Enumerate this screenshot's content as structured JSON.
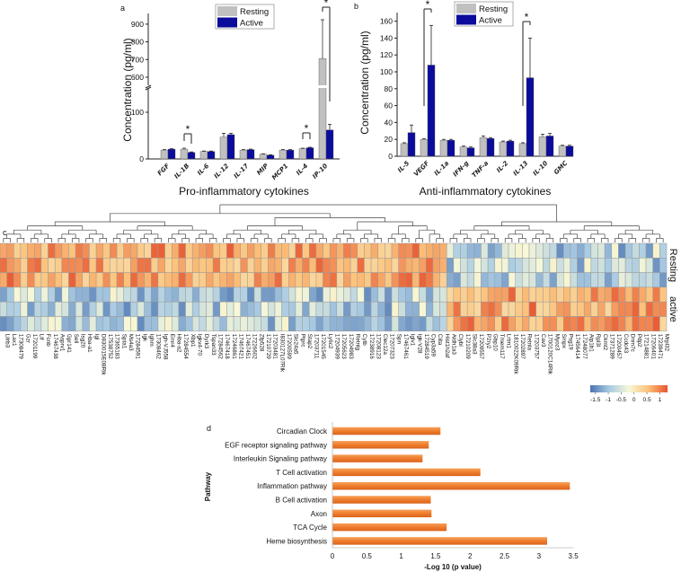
{
  "chart_data": [
    {
      "panel": "a",
      "type": "bar",
      "ylabel": "Concentration (pg/ml)",
      "xlabel": "Pro-inflammatory cytokines",
      "categories": [
        "FGF",
        "IL-1B",
        "IL-6",
        "IL-12",
        "IL-17",
        "MIP",
        "MCP1",
        "IL-4",
        "IP-10"
      ],
      "series": [
        {
          "name": "Resting",
          "color": "#c0c0c0",
          "values": [
            19,
            21,
            16,
            47,
            19,
            10,
            19,
            22,
            705
          ],
          "errors": [
            1,
            2,
            1,
            8,
            1,
            1,
            1,
            1,
            220
          ]
        },
        {
          "name": "Active",
          "color": "#0b0b9c",
          "values": [
            21,
            14,
            16,
            52,
            20,
            8,
            19,
            24,
            62
          ],
          "errors": [
            1,
            1,
            1,
            3,
            1,
            1,
            1,
            1,
            12
          ]
        }
      ],
      "yticks_lower": [
        0,
        100
      ],
      "yticks_upper": [
        600,
        700,
        800,
        900
      ],
      "axis_break": [
        155,
        560
      ],
      "significance": [
        {
          "category": "IL-1B",
          "mark": "*"
        },
        {
          "category": "IL-4",
          "mark": "*"
        },
        {
          "category": "IP-10",
          "mark": "*"
        }
      ],
      "legend": "top-center"
    },
    {
      "panel": "b",
      "type": "bar",
      "ylabel": "Concentration (pg/ml)",
      "xlabel": "Anti-inflammatory cytokines",
      "categories": [
        "IL-5",
        "VEGF",
        "IL-1a",
        "IFN-g",
        "TNF-a",
        "IL-2",
        "IL-13",
        "IL-10",
        "GMC"
      ],
      "series": [
        {
          "name": "Resting",
          "color": "#c0c0c0",
          "values": [
            15,
            20,
            19,
            11,
            22,
            17,
            15,
            23,
            12
          ],
          "errors": [
            1,
            1,
            1,
            1,
            2,
            1,
            1,
            3,
            1
          ]
        },
        {
          "name": "Active",
          "color": "#0b0b9c",
          "values": [
            28,
            108,
            19,
            10,
            21,
            18,
            93,
            24,
            12
          ],
          "errors": [
            9,
            47,
            1,
            1,
            1,
            1,
            47,
            3,
            1
          ]
        }
      ],
      "yticks": [
        0,
        20,
        40,
        60,
        80,
        100,
        120,
        140,
        160
      ],
      "ylim": [
        0,
        170
      ],
      "significance": [
        {
          "category": "VEGF",
          "mark": "*"
        },
        {
          "category": "IL-13",
          "mark": "*"
        }
      ],
      "legend": "top-center"
    },
    {
      "panel": "c",
      "type": "heatmap",
      "rows": [
        "Resting",
        "active"
      ],
      "row_groups": [
        [
          "Resting",
          3
        ],
        [
          "active",
          3
        ]
      ],
      "colorbar": {
        "ticks": [
          "-1.5",
          "-1",
          "-0.5",
          "0",
          "0.5",
          "1"
        ],
        "range": [
          -1.7,
          1.3
        ],
        "colors": [
          "#4a74b2",
          "#a9cbe3",
          "#f6f8d8",
          "#fcc27a",
          "#e8542e"
        ]
      },
      "left_cluster_size": 65,
      "genes": [
        "Lilrb3",
        "Lax1",
        "17308479",
        "Gzr",
        "17201199",
        "Lif",
        "Fcnb",
        "17467438",
        "Asprv1",
        "Gpr141",
        "Sell",
        "Isg20",
        "Hba-a1",
        "Igl",
        "D830015E08Rik",
        "17538752",
        "17365183",
        "Spta1",
        "Ms4a3",
        "17284591",
        "Igk",
        "Ighm",
        "17308462",
        "Igh-VJ558",
        "Emr4",
        "Hba-a2",
        "17284554",
        "Xbp1",
        "Igkv4-70",
        "Dyrk3",
        "Tspan33",
        "17284562",
        "17467418",
        "17246861",
        "17467421",
        "17467451",
        "17226602",
        "Zfp528",
        "17210729",
        "17203481",
        "I830127L07Rik",
        "17200599",
        "Slc24a5",
        "Ptprc",
        "Stap2",
        "17203711",
        "17201545",
        "Ly6c2",
        "17204939",
        "17205623",
        "17204983",
        "Retnlg",
        "Cytb",
        "17238916",
        "17208123",
        "Clec12a",
        "17207323",
        "Spn",
        "17467461",
        "Iglv1",
        "Igk-V28",
        "17284519",
        "Cyp3a59",
        "Ciita",
        "Hist1h2af",
        "Aldh1a3",
        "Clybl",
        "17210209",
        "Slc38a3",
        "17209557",
        "P2ry2",
        "Gbp10",
        "Tmem117",
        "Lrtm1",
        "1810022K09Rik",
        "17202897",
        "Retnla",
        "17203757",
        "Cav3",
        "1700120C14Rik",
        "Myoz3",
        "Smpx",
        "Psg19",
        "17456414",
        "17248077",
        "Atp1b1",
        "Rpl3l",
        "Ckmt2",
        "17371289",
        "17200457",
        "Ccdc43",
        "Dnm7c",
        "Pdp2",
        "17214881",
        "17206401",
        "17239471",
        "Mrpl32"
      ]
    },
    {
      "panel": "d",
      "type": "bar",
      "orientation": "horizontal",
      "ylabel": "Pathway",
      "xlabel": "-Log 10 (p value)",
      "categories": [
        "Circadian Clock",
        "EGF receptor signaling pathway",
        "Interleukin Signaling pathway",
        "T Cell activation",
        "Inflammation pathway",
        "B Cell activation",
        "Axon",
        "TCA Cycle",
        "Heme biosynthesis"
      ],
      "values": [
        1.57,
        1.4,
        1.31,
        2.15,
        3.45,
        1.43,
        1.44,
        1.66,
        3.12
      ],
      "xticks": [
        "0",
        "0.5",
        "1",
        "1.5",
        "2",
        "2.5",
        "3",
        "3.5"
      ],
      "xlim": [
        0,
        3.5
      ],
      "color": "#ef7d2d"
    }
  ],
  "labels": {
    "a": "a",
    "b": "b",
    "c": "c",
    "d": "d"
  }
}
